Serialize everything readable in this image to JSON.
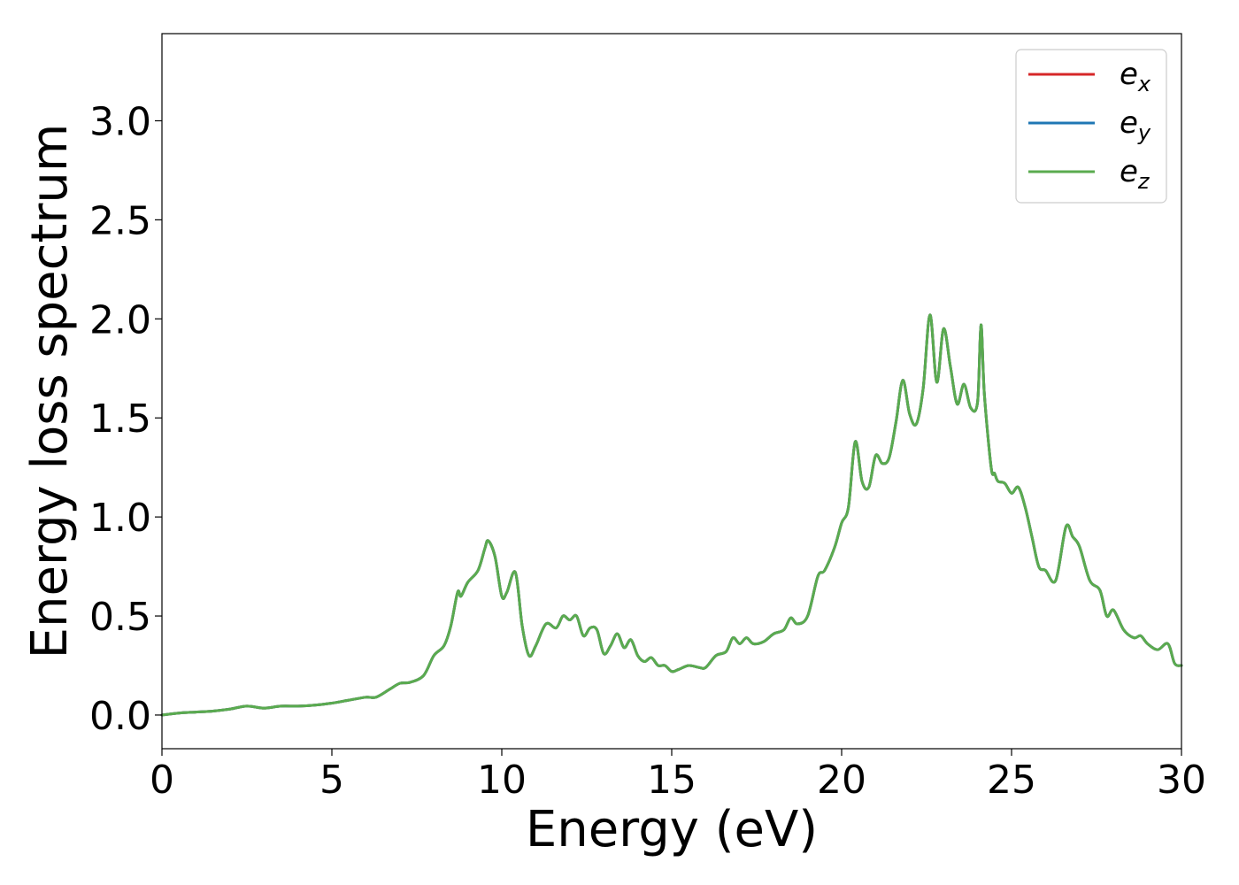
{
  "chart_data": {
    "type": "line",
    "xlabel": "Energy (eV)",
    "ylabel": "Energy loss spectrum",
    "xlim": [
      0,
      30
    ],
    "ylim": [
      -0.17,
      3.44
    ],
    "xticks": [
      0,
      5,
      10,
      15,
      20,
      25,
      30
    ],
    "xtick_labels": [
      "0",
      "5",
      "10",
      "15",
      "20",
      "25",
      "30"
    ],
    "yticks": [
      0.0,
      0.5,
      1.0,
      1.5,
      2.0,
      2.5,
      3.0
    ],
    "ytick_labels": [
      "0.0",
      "0.5",
      "1.0",
      "1.5",
      "2.0",
      "2.5",
      "3.0"
    ],
    "grid": false,
    "legend_position": "top-right",
    "x": [
      0,
      0.5,
      1,
      1.5,
      2,
      2.5,
      3,
      3.5,
      4,
      4.5,
      5,
      5.5,
      6,
      6.3,
      6.7,
      7,
      7.3,
      7.7,
      8,
      8.3,
      8.5,
      8.7,
      8.8,
      9,
      9.3,
      9.5,
      9.6,
      9.8,
      10,
      10.15,
      10.4,
      10.6,
      10.8,
      11,
      11.3,
      11.6,
      11.8,
      12,
      12.2,
      12.4,
      12.6,
      12.8,
      13,
      13.2,
      13.4,
      13.6,
      13.8,
      14,
      14.2,
      14.4,
      14.6,
      14.8,
      15,
      15.2,
      15.5,
      15.8,
      16,
      16.3,
      16.6,
      16.8,
      17,
      17.2,
      17.4,
      17.7,
      18,
      18.3,
      18.5,
      18.7,
      19,
      19.3,
      19.5,
      19.8,
      20,
      20.2,
      20.4,
      20.6,
      20.8,
      21,
      21.2,
      21.4,
      21.6,
      21.8,
      22,
      22.2,
      22.4,
      22.6,
      22.8,
      23,
      23.2,
      23.4,
      23.6,
      23.8,
      24,
      24.1,
      24.2,
      24.4,
      24.5,
      24.6,
      24.8,
      25,
      25.2,
      25.4,
      25.6,
      25.8,
      26,
      26.3,
      26.6,
      26.8,
      27,
      27.3,
      27.6,
      27.8,
      28,
      28.3,
      28.6,
      28.8,
      29,
      29.3,
      29.6,
      29.8,
      30
    ],
    "series": [
      {
        "name": "e_x",
        "label_base": "e",
        "label_sub": "x",
        "color": "#d62728",
        "values": [
          0.0,
          0.01,
          0.015,
          0.02,
          0.03,
          0.045,
          0.035,
          0.045,
          0.045,
          0.05,
          0.06,
          0.075,
          0.09,
          0.09,
          0.13,
          0.16,
          0.165,
          0.2,
          0.3,
          0.35,
          0.45,
          0.62,
          0.6,
          0.67,
          0.73,
          0.84,
          0.88,
          0.8,
          0.6,
          0.62,
          0.72,
          0.45,
          0.3,
          0.35,
          0.46,
          0.44,
          0.5,
          0.48,
          0.5,
          0.4,
          0.44,
          0.43,
          0.31,
          0.35,
          0.41,
          0.34,
          0.38,
          0.3,
          0.27,
          0.29,
          0.25,
          0.25,
          0.22,
          0.23,
          0.25,
          0.24,
          0.24,
          0.3,
          0.32,
          0.39,
          0.36,
          0.39,
          0.36,
          0.37,
          0.41,
          0.43,
          0.49,
          0.46,
          0.5,
          0.7,
          0.73,
          0.85,
          0.97,
          1.05,
          1.38,
          1.18,
          1.15,
          1.31,
          1.27,
          1.3,
          1.48,
          1.69,
          1.52,
          1.47,
          1.65,
          2.02,
          1.68,
          1.95,
          1.76,
          1.57,
          1.67,
          1.55,
          1.58,
          1.97,
          1.62,
          1.25,
          1.22,
          1.18,
          1.17,
          1.12,
          1.15,
          1.05,
          0.9,
          0.75,
          0.73,
          0.68,
          0.95,
          0.9,
          0.85,
          0.68,
          0.63,
          0.5,
          0.53,
          0.43,
          0.39,
          0.4,
          0.36,
          0.33,
          0.36,
          0.26,
          0.25
        ]
      },
      {
        "name": "e_y",
        "label_base": "e",
        "label_sub": "y",
        "color": "#1f77b4",
        "values": [
          0.0,
          0.01,
          0.015,
          0.02,
          0.03,
          0.045,
          0.035,
          0.045,
          0.045,
          0.05,
          0.06,
          0.075,
          0.09,
          0.09,
          0.13,
          0.16,
          0.165,
          0.2,
          0.3,
          0.35,
          0.45,
          0.62,
          0.6,
          0.67,
          0.73,
          0.84,
          0.88,
          0.8,
          0.6,
          0.62,
          0.72,
          0.45,
          0.3,
          0.35,
          0.46,
          0.44,
          0.5,
          0.48,
          0.5,
          0.4,
          0.44,
          0.43,
          0.31,
          0.35,
          0.41,
          0.34,
          0.38,
          0.3,
          0.27,
          0.29,
          0.25,
          0.25,
          0.22,
          0.23,
          0.25,
          0.24,
          0.24,
          0.3,
          0.32,
          0.39,
          0.36,
          0.39,
          0.36,
          0.37,
          0.41,
          0.43,
          0.49,
          0.46,
          0.5,
          0.7,
          0.73,
          0.85,
          0.97,
          1.05,
          1.38,
          1.18,
          1.15,
          1.31,
          1.27,
          1.3,
          1.48,
          1.69,
          1.52,
          1.47,
          1.65,
          2.02,
          1.68,
          1.95,
          1.76,
          1.57,
          1.67,
          1.55,
          1.58,
          1.97,
          1.62,
          1.25,
          1.22,
          1.18,
          1.17,
          1.12,
          1.15,
          1.05,
          0.9,
          0.75,
          0.73,
          0.68,
          0.95,
          0.9,
          0.85,
          0.68,
          0.63,
          0.5,
          0.53,
          0.43,
          0.39,
          0.4,
          0.36,
          0.33,
          0.36,
          0.26,
          0.25
        ]
      },
      {
        "name": "e_z",
        "label_base": "e",
        "label_sub": "z",
        "color": "#5aab4f",
        "values": [
          0.0,
          0.01,
          0.015,
          0.02,
          0.03,
          0.045,
          0.035,
          0.045,
          0.045,
          0.05,
          0.06,
          0.075,
          0.09,
          0.09,
          0.13,
          0.16,
          0.165,
          0.2,
          0.3,
          0.35,
          0.45,
          0.62,
          0.6,
          0.67,
          0.73,
          0.84,
          0.88,
          0.8,
          0.6,
          0.62,
          0.72,
          0.45,
          0.3,
          0.35,
          0.46,
          0.44,
          0.5,
          0.48,
          0.5,
          0.4,
          0.44,
          0.43,
          0.31,
          0.35,
          0.41,
          0.34,
          0.38,
          0.3,
          0.27,
          0.29,
          0.25,
          0.25,
          0.22,
          0.23,
          0.25,
          0.24,
          0.24,
          0.3,
          0.32,
          0.39,
          0.36,
          0.39,
          0.36,
          0.37,
          0.41,
          0.43,
          0.49,
          0.46,
          0.5,
          0.7,
          0.73,
          0.85,
          0.97,
          1.05,
          1.38,
          1.18,
          1.15,
          1.31,
          1.27,
          1.3,
          1.48,
          1.69,
          1.52,
          1.47,
          1.65,
          2.02,
          1.68,
          1.95,
          1.76,
          1.57,
          1.67,
          1.55,
          1.58,
          1.97,
          1.62,
          1.25,
          1.22,
          1.18,
          1.17,
          1.12,
          1.15,
          1.05,
          0.9,
          0.75,
          0.73,
          0.68,
          0.95,
          0.9,
          0.85,
          0.68,
          0.63,
          0.5,
          0.53,
          0.43,
          0.39,
          0.4,
          0.36,
          0.33,
          0.36,
          0.26,
          0.25
        ]
      }
    ]
  }
}
